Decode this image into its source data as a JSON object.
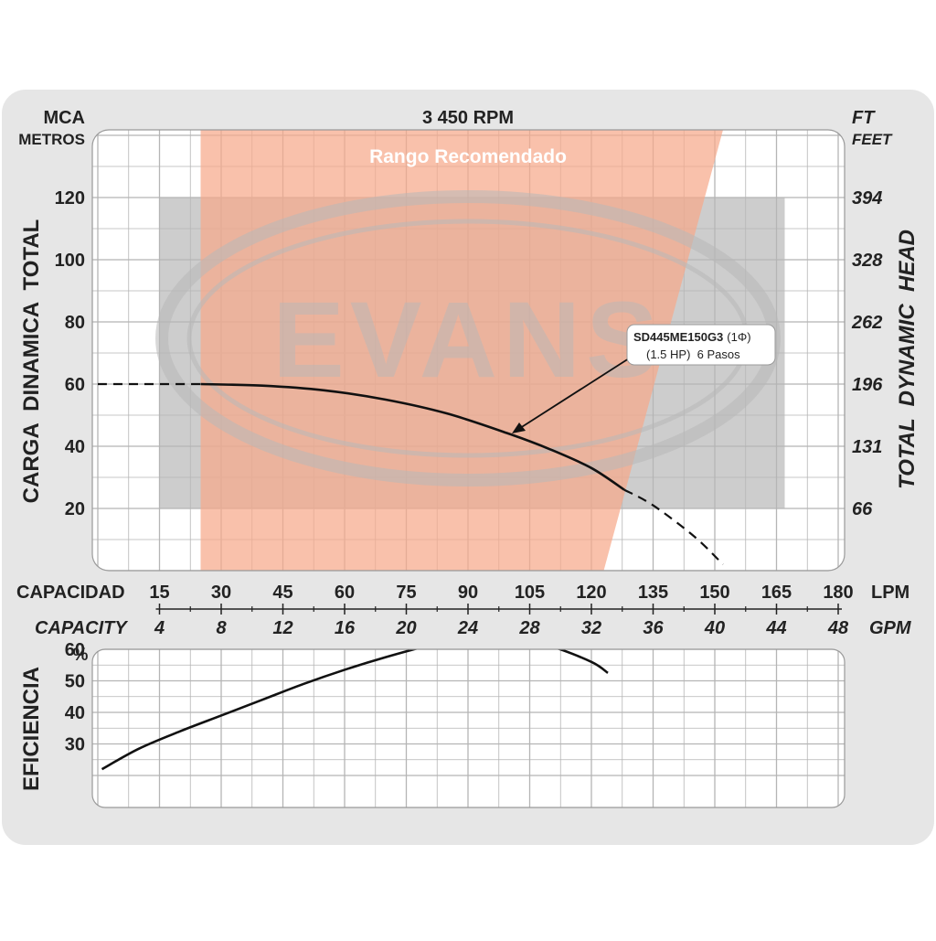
{
  "header": {
    "left_unit": "MCA",
    "left_unit_sub": "METROS",
    "title": "3 450 RPM",
    "right_unit": "FT",
    "right_unit_sub": "FEET"
  },
  "watermark": {
    "text": "EVANS"
  },
  "colors": {
    "panel": "#e6e6e6",
    "grid_bg": "#ffffff",
    "grid_line": "#b5b5b5",
    "recommended": "#f7a98a",
    "shade": "#c8c8c8",
    "curve": "#111111",
    "watermark": "#b8b8b8"
  },
  "chart_data": [
    {
      "type": "line",
      "title": "3 450 RPM",
      "region_label": "Rango Recomendado",
      "ylabel": "CARGA  DINAMICA  TOTAL",
      "ylabel_right": "TOTAL  DYNAMIC  HEAD",
      "xlabel": "CAPACIDAD",
      "xlabel_unit": "LPM",
      "xlabel_secondary": "CAPACITY",
      "xlabel_secondary_unit": "GPM",
      "x_ticks": [
        15,
        30,
        45,
        60,
        75,
        90,
        105,
        120,
        135,
        150,
        165,
        180
      ],
      "x_ticks_secondary": [
        4,
        8,
        12,
        16,
        20,
        24,
        28,
        32,
        36,
        40,
        44,
        48
      ],
      "y_ticks": [
        20,
        40,
        60,
        80,
        100,
        120
      ],
      "y_ticks_right": [
        66,
        131,
        196,
        262,
        328,
        394
      ],
      "xlim": [
        0,
        185
      ],
      "ylim": [
        0,
        140
      ],
      "grid": true,
      "recommended_range": {
        "label": "Rango Recomendado",
        "bottom_x": [
          25,
          123
        ],
        "top_x": [
          25,
          152
        ]
      },
      "annotation": {
        "model": "SD445ME150G3",
        "phase": "(1Φ)",
        "detail": "(1.5 HP)  6 Pasos"
      },
      "series": [
        {
          "name": "SD445ME150G3",
          "x": [
            25,
            40,
            55,
            70,
            85,
            100,
            110,
            120,
            128
          ],
          "y": [
            60,
            59.5,
            58,
            55,
            50.5,
            44,
            39,
            33,
            26
          ],
          "dashed_before": [
            [
              0,
              60
            ],
            [
              10,
              60
            ],
            [
              25,
              60
            ]
          ],
          "dashed_after": [
            [
              128,
              26
            ],
            [
              135,
              21
            ],
            [
              145,
              11
            ],
            [
              152,
              2
            ]
          ]
        }
      ]
    },
    {
      "type": "line",
      "ylabel": "EFICIENCIA",
      "y_unit": "%",
      "y_ticks": [
        30,
        40,
        50,
        60
      ],
      "ylim": [
        20,
        70
      ],
      "xlim": [
        0,
        185
      ],
      "grid": true,
      "series": [
        {
          "name": "SD445ME150G3",
          "x": [
            1,
            10,
            20,
            30,
            40,
            50,
            60,
            70,
            80,
            90,
            100,
            110,
            120,
            124
          ],
          "y": [
            22,
            28.5,
            34,
            39,
            44,
            49,
            53.5,
            57.5,
            61,
            63.5,
            63.5,
            61,
            56,
            52.5
          ]
        }
      ]
    }
  ]
}
